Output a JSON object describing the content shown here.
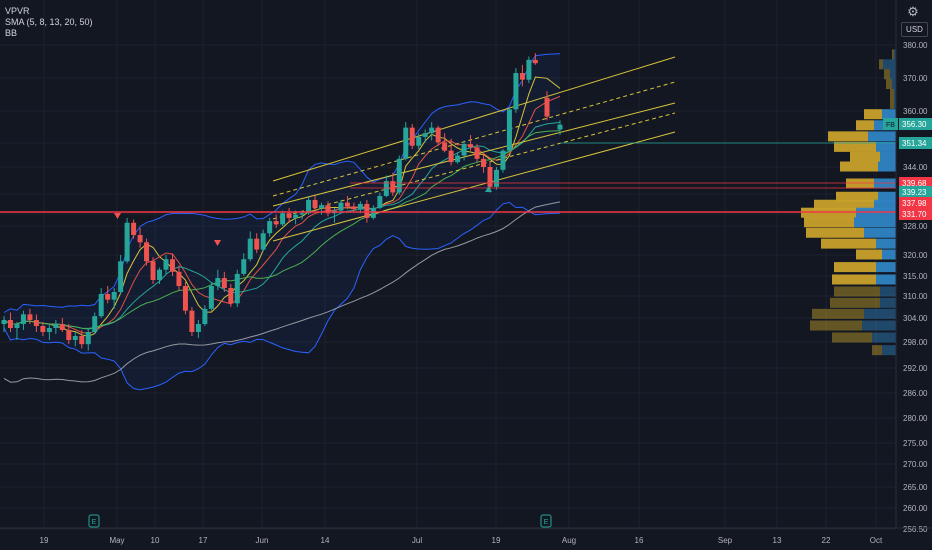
{
  "legend": {
    "vpvr": "VPVR",
    "sma": "SMA (5, 8, 13, 20, 50)",
    "bb": "BB"
  },
  "currency": "USD",
  "icons": {
    "settings": "settings-icon",
    "earnings": "earnings-marker-icon"
  },
  "colors": {
    "background": "#131722",
    "up": "#26a69a",
    "down": "#ef5350",
    "bb_line": "#2962ff",
    "channel": "#d9c43a",
    "support": "#f23645",
    "vp_up": "#2f84c4",
    "vp_down": "#c8a12b"
  },
  "chart_data": {
    "type": "candlestick",
    "price_axis": {
      "ticks": [
        "380.00",
        "370.00",
        "360.00",
        "351.34",
        "344.00",
        "339.23",
        "331.70",
        "328.00",
        "320.00",
        "315.00",
        "310.00",
        "304.00",
        "298.00",
        "292.00",
        "286.00",
        "280.00",
        "275.00",
        "270.00",
        "265.00",
        "260.00",
        "256.50"
      ]
    },
    "time_axis": {
      "labels": [
        "19",
        "May",
        "10",
        "17",
        "Jun",
        "14",
        "Jul",
        "19",
        "Aug",
        "16",
        "Sep",
        "13",
        "22",
        "Oct"
      ]
    },
    "price_tags": [
      {
        "label": "FB",
        "value": "356.30",
        "color": "#26a69a"
      },
      {
        "label": "",
        "value": "351.34",
        "color": "#26a69a"
      },
      {
        "label": "",
        "value": "339.68",
        "color": "#f23645"
      },
      {
        "label": "",
        "value": "339.23",
        "color": "#26a69a"
      },
      {
        "label": "",
        "value": "337.98",
        "color": "#f23645"
      },
      {
        "label": "",
        "value": "331.70",
        "color": "#f23645"
      }
    ],
    "candles": [
      [
        302.5,
        304.5,
        300.5,
        303.5
      ],
      [
        303.5,
        305.5,
        300.5,
        301.5
      ],
      [
        301.5,
        303.0,
        298.5,
        302.5
      ],
      [
        302.5,
        306.0,
        301.0,
        305.0
      ],
      [
        305.0,
        306.5,
        302.5,
        303.5
      ],
      [
        303.5,
        305.0,
        300.5,
        302.0
      ],
      [
        302.0,
        303.0,
        299.5,
        300.5
      ],
      [
        300.5,
        302.5,
        298.5,
        301.5
      ],
      [
        301.5,
        303.5,
        300.0,
        302.5
      ],
      [
        302.5,
        304.0,
        300.5,
        301.0
      ],
      [
        301.0,
        302.5,
        297.5,
        298.5
      ],
      [
        298.5,
        300.5,
        297.0,
        299.5
      ],
      [
        299.5,
        301.0,
        296.5,
        297.5
      ],
      [
        297.5,
        301.5,
        296.0,
        300.5
      ],
      [
        300.5,
        305.5,
        300.0,
        304.5
      ],
      [
        304.5,
        312.0,
        304.0,
        310.5
      ],
      [
        310.5,
        312.5,
        308.0,
        309.0
      ],
      [
        309.0,
        312.0,
        306.5,
        311.0
      ],
      [
        311.0,
        320.0,
        310.5,
        318.5
      ],
      [
        318.5,
        330.5,
        318.0,
        329.0
      ],
      [
        329.0,
        330.0,
        324.5,
        325.5
      ],
      [
        325.5,
        327.5,
        322.0,
        323.5
      ],
      [
        323.5,
        324.5,
        317.5,
        318.5
      ],
      [
        318.5,
        319.5,
        313.0,
        314.0
      ],
      [
        314.0,
        317.0,
        313.0,
        316.5
      ],
      [
        316.5,
        320.0,
        315.5,
        319.0
      ],
      [
        319.0,
        320.5,
        315.0,
        316.0
      ],
      [
        316.0,
        317.5,
        311.5,
        312.5
      ],
      [
        312.5,
        313.5,
        305.0,
        306.0
      ],
      [
        306.0,
        307.0,
        299.5,
        300.5
      ],
      [
        300.5,
        303.5,
        299.0,
        302.5
      ],
      [
        302.5,
        307.5,
        302.0,
        306.5
      ],
      [
        306.5,
        313.5,
        306.0,
        312.5
      ],
      [
        312.5,
        316.5,
        311.5,
        314.5
      ],
      [
        314.5,
        316.0,
        311.0,
        312.0
      ],
      [
        312.0,
        313.0,
        307.0,
        308.0
      ],
      [
        308.0,
        316.5,
        307.0,
        315.5
      ],
      [
        315.5,
        320.5,
        315.0,
        319.0
      ],
      [
        319.0,
        326.5,
        318.5,
        324.5
      ],
      [
        324.5,
        326.0,
        320.5,
        321.5
      ],
      [
        321.5,
        327.0,
        321.0,
        326.0
      ],
      [
        326.0,
        330.5,
        325.0,
        329.5
      ],
      [
        329.5,
        331.5,
        327.5,
        328.5
      ],
      [
        328.5,
        333.0,
        328.0,
        332.0
      ],
      [
        332.0,
        334.0,
        329.0,
        330.5
      ],
      [
        330.5,
        333.0,
        328.5,
        331.5
      ],
      [
        331.5,
        333.0,
        330.0,
        332.0
      ],
      [
        332.0,
        338.0,
        331.5,
        337.0
      ],
      [
        337.0,
        338.5,
        333.0,
        334.0
      ],
      [
        334.0,
        336.0,
        331.5,
        335.0
      ],
      [
        335.0,
        336.5,
        331.0,
        332.0
      ],
      [
        332.0,
        334.0,
        329.0,
        333.0
      ],
      [
        333.0,
        337.0,
        332.0,
        336.0
      ],
      [
        336.0,
        338.5,
        333.5,
        334.5
      ],
      [
        334.5,
        336.0,
        332.5,
        333.5
      ],
      [
        333.5,
        336.5,
        332.0,
        335.5
      ],
      [
        335.5,
        337.0,
        329.0,
        330.5
      ],
      [
        330.5,
        335.0,
        330.0,
        334.0
      ],
      [
        334.0,
        339.5,
        333.5,
        338.5
      ],
      [
        338.5,
        342.5,
        338.0,
        341.5
      ],
      [
        341.5,
        343.0,
        338.5,
        339.5
      ],
      [
        339.5,
        347.5,
        339.0,
        346.5
      ],
      [
        346.5,
        357.0,
        346.0,
        355.5
      ],
      [
        355.5,
        356.5,
        349.5,
        350.5
      ],
      [
        350.5,
        354.0,
        349.5,
        353.0
      ],
      [
        353.0,
        355.0,
        351.5,
        354.0
      ],
      [
        354.0,
        357.0,
        352.0,
        355.5
      ],
      [
        355.5,
        356.0,
        350.5,
        351.5
      ],
      [
        351.5,
        354.0,
        348.5,
        349.0
      ],
      [
        349.0,
        352.5,
        344.5,
        345.5
      ],
      [
        345.5,
        348.5,
        345.0,
        347.5
      ],
      [
        347.5,
        352.0,
        346.0,
        351.0
      ],
      [
        351.0,
        353.5,
        349.0,
        350.0
      ],
      [
        350.0,
        351.0,
        345.5,
        346.5
      ],
      [
        346.5,
        347.5,
        343.0,
        344.0
      ],
      [
        344.0,
        345.5,
        339.5,
        340.5
      ],
      [
        340.5,
        344.0,
        340.0,
        343.5
      ],
      [
        343.5,
        349.5,
        343.0,
        349.0
      ],
      [
        349.0,
        361.0,
        348.5,
        360.5
      ],
      [
        360.5,
        373.0,
        359.5,
        371.5
      ],
      [
        371.5,
        374.0,
        367.5,
        369.5
      ],
      [
        369.5,
        376.5,
        368.5,
        375.5
      ],
      [
        375.5,
        377.5,
        374.0,
        374.5
      ],
      [
        364.0,
        366.0,
        357.5,
        358.5
      ],
      [
        355.0,
        357.5,
        353.5,
        356.3
      ]
    ]
  },
  "volume_profile": {
    "rows": [
      {
        "price": 377.0,
        "buy": 2,
        "sell": 2
      },
      {
        "price": 374.0,
        "buy": 4,
        "sell": 13
      },
      {
        "price": 371.0,
        "buy": 6,
        "sell": 6
      },
      {
        "price": 368.0,
        "buy": 6,
        "sell": 4
      },
      {
        "price": 365.0,
        "buy": 4,
        "sell": 2
      },
      {
        "price": 362.0,
        "buy": 4,
        "sell": 2
      },
      {
        "price": 359.0,
        "buy": 18,
        "sell": 14
      },
      {
        "price": 356.0,
        "buy": 18,
        "sell": 22
      },
      {
        "price": 353.0,
        "buy": 40,
        "sell": 28
      },
      {
        "price": 350.0,
        "buy": 42,
        "sell": 20
      },
      {
        "price": 347.0,
        "buy": 30,
        "sell": 16
      },
      {
        "price": 344.0,
        "buy": 38,
        "sell": 18
      },
      {
        "price": 341.0,
        "buy": 28,
        "sell": 22
      },
      {
        "price": 338.0,
        "buy": 42,
        "sell": 18
      },
      {
        "price": 335.0,
        "buy": 60,
        "sell": 22
      },
      {
        "price": 332.0,
        "buy": 55,
        "sell": 40
      },
      {
        "price": 329.0,
        "buy": 50,
        "sell": 42
      },
      {
        "price": 326.0,
        "buy": 58,
        "sell": 32
      },
      {
        "price": 323.0,
        "buy": 55,
        "sell": 20
      },
      {
        "price": 320.0,
        "buy": 26,
        "sell": 14
      },
      {
        "price": 317.0,
        "buy": 42,
        "sell": 20
      },
      {
        "price": 314.0,
        "buy": 44,
        "sell": 20
      },
      {
        "price": 311.0,
        "buy": 46,
        "sell": 16
      },
      {
        "price": 308.0,
        "buy": 50,
        "sell": 16
      },
      {
        "price": 305.0,
        "buy": 52,
        "sell": 32
      },
      {
        "price": 302.0,
        "buy": 52,
        "sell": 34
      },
      {
        "price": 299.0,
        "buy": 40,
        "sell": 24
      },
      {
        "price": 296.0,
        "buy": 10,
        "sell": 14
      }
    ]
  }
}
